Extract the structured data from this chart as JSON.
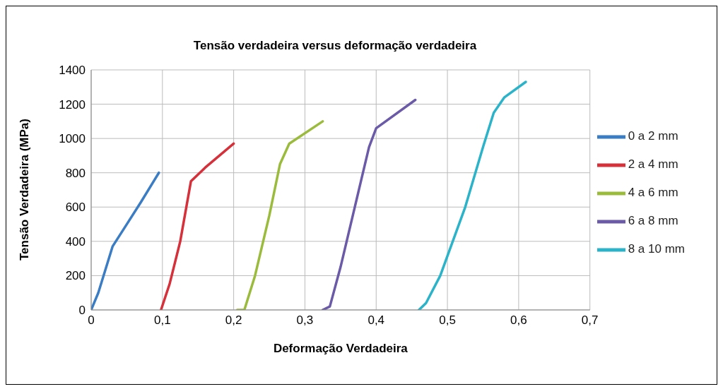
{
  "chart_data": {
    "type": "line",
    "title": "Tensão verdadeira versus deformação verdadeira",
    "xlabel": "Deformação Verdadeira",
    "ylabel": "Tensão Verdadeira (MPa)",
    "xlim": [
      0,
      0.7
    ],
    "xticks": [
      0,
      {
        "value": 0.1,
        "label": "0,1"
      },
      {
        "value": 0.2,
        "label": "0,2"
      },
      {
        "value": 0.3,
        "label": "0,3"
      },
      {
        "value": 0.4,
        "label": "0,4"
      },
      {
        "value": 0.5,
        "label": "0,5"
      },
      {
        "value": 0.6,
        "label": "0,6"
      },
      {
        "value": 0.7,
        "label": "0,7"
      }
    ],
    "ylim": [
      0,
      1400
    ],
    "yticks": [
      0,
      200,
      400,
      600,
      800,
      1000,
      1200,
      1400
    ],
    "grid": true,
    "legend": "right",
    "marker": "none",
    "line_style": "solid",
    "series": [
      {
        "name": "0 a 2 mm",
        "color": "#3b7dc4",
        "x": [
          0,
          0.01,
          0.03,
          0.05,
          0.07,
          0.095
        ],
        "values": [
          0,
          100,
          370,
          500,
          630,
          800
        ]
      },
      {
        "name": "2 a 4 mm",
        "color": "#d6303a",
        "x": [
          0.098,
          0.11,
          0.125,
          0.14,
          0.16,
          0.2
        ],
        "values": [
          0,
          150,
          400,
          750,
          830,
          970
        ]
      },
      {
        "name": "4 a 6 mm",
        "color": "#9bbb3c",
        "x": [
          0.205,
          0.215,
          0.23,
          0.25,
          0.265,
          0.278,
          0.325
        ],
        "values": [
          0,
          0,
          200,
          550,
          850,
          970,
          1100
        ]
      },
      {
        "name": "6 a 8 mm",
        "color": "#6a5aa8",
        "x": [
          0.325,
          0.335,
          0.35,
          0.37,
          0.39,
          0.4,
          0.455
        ],
        "values": [
          0,
          20,
          250,
          600,
          950,
          1060,
          1225
        ]
      },
      {
        "name": "8 a 10 mm",
        "color": "#2ab3c9",
        "x": [
          0.46,
          0.47,
          0.49,
          0.525,
          0.55,
          0.565,
          0.58,
          0.61
        ],
        "values": [
          0,
          40,
          200,
          600,
          950,
          1150,
          1240,
          1330
        ]
      }
    ]
  }
}
